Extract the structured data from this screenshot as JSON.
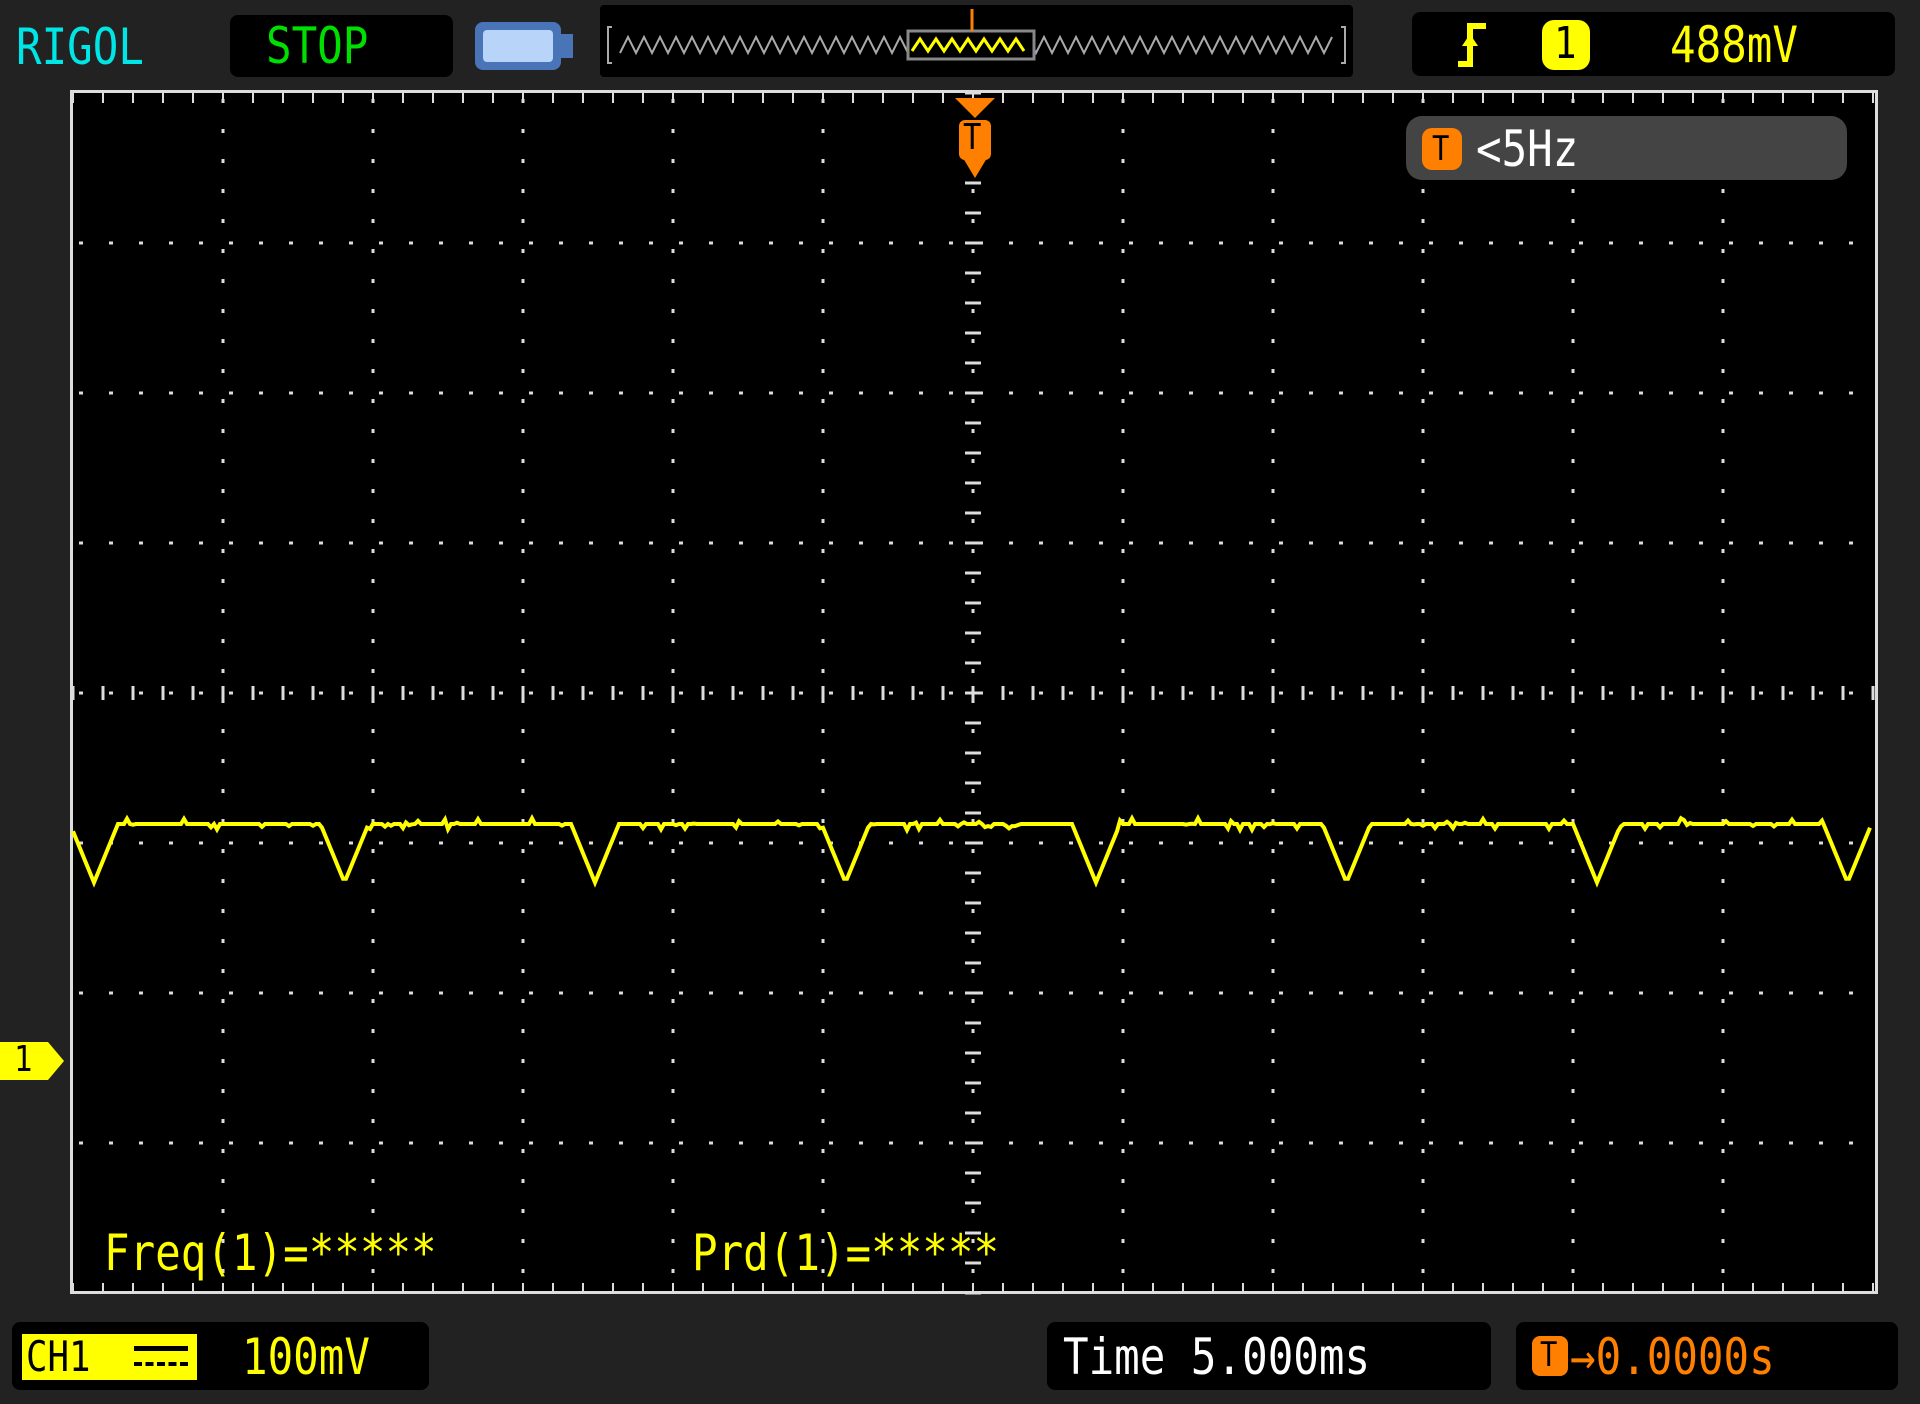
{
  "header": {
    "brand": "RIGOL",
    "run_state": "STOP",
    "trigger": {
      "edge_icon": "rising-edge-icon",
      "source": "1",
      "level": "488mV"
    },
    "trigger_frequency": {
      "icon_letter": "T",
      "value": "<5Hz"
    }
  },
  "screen": {
    "trigger_marker": "T",
    "channel_marker": "1",
    "measurements": [
      {
        "label": "Freq(1)=*****"
      },
      {
        "label": "Prd(1)=*****"
      }
    ]
  },
  "footer": {
    "channel": "CH1",
    "coupling_icon": "dc-coupling-icon",
    "volts_per_div": "100mV",
    "timebase": "Time 5.000ms",
    "trigger_offset_icon": "T",
    "trigger_offset": "→0.0000s"
  },
  "colors": {
    "brand": "#00e5e5",
    "run_state": "#00e000",
    "channel1": "#ffff00",
    "trigger": "#ff8000",
    "grid": "#ffffff"
  },
  "chart_data": {
    "type": "line",
    "x_unit": "ms",
    "y_unit": "mV",
    "xlim": [
      -30,
      30
    ],
    "ylim_relative_to_ground": [
      -180,
      620
    ],
    "grid": true,
    "divisions": {
      "horizontal": 12,
      "vertical": 8
    },
    "series": [
      {
        "baseline_mV": 158,
        "dip_min_mV": 119,
        "period_ms": 8.35,
        "dip_times_ms": [
          -29.3,
          -20.95,
          -12.6,
          -4.25,
          4.1,
          12.45,
          20.8,
          29.15
        ]
      }
    ]
  }
}
